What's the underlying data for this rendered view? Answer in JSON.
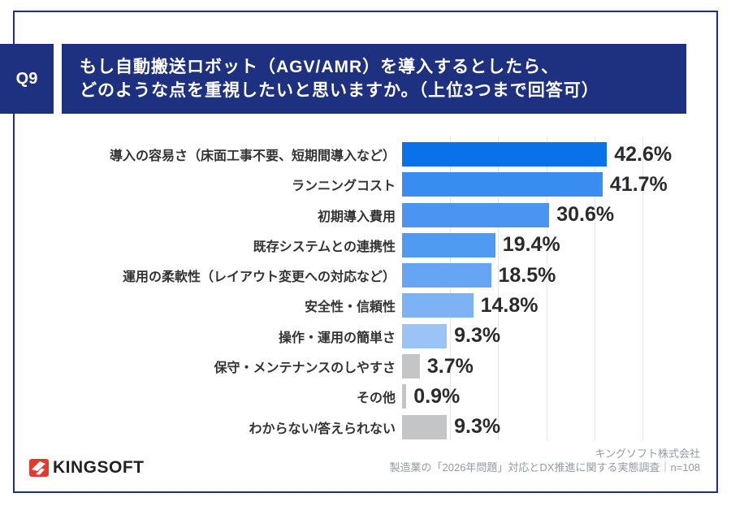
{
  "question": {
    "number": "Q9",
    "title_line1": "もし自動搬送ロボット（AGV/AMR）を導入するとしたら、",
    "title_line2": "どのような点を重視したいと思いますか。（上位3つまで回答可）"
  },
  "chart_data": {
    "type": "bar",
    "orientation": "horizontal",
    "unit": "%",
    "categories": [
      "導入の容易さ（床面工事不要、短期間導入など）",
      "ランニングコスト",
      "初期導入費用",
      "既存システムとの連携性",
      "運用の柔軟性（レイアウト変更への対応など）",
      "安全性・信頼性",
      "操作・運用の簡単さ",
      "保守・メンテナンスのしやすさ",
      "その他",
      "わからない/答えられない"
    ],
    "values": [
      42.6,
      41.7,
      30.6,
      19.4,
      18.5,
      14.8,
      9.3,
      3.7,
      0.9,
      9.3
    ],
    "value_labels": [
      "42.6%",
      "41.7%",
      "30.6%",
      "19.4%",
      "18.5%",
      "14.8%",
      "9.3%",
      "3.7%",
      "0.9%",
      "9.3%"
    ],
    "bar_colors": [
      "#0a72e8",
      "#3a8df0",
      "#4b95f1",
      "#4f9af3",
      "#66a5f3",
      "#7db3f4",
      "#9bc3f6",
      "#c4c5c6",
      "#c4c5c6",
      "#c4c5c6"
    ],
    "xlim": [
      0,
      60
    ],
    "gridline_interval": 10,
    "grid": true,
    "legend": "none"
  },
  "footer": {
    "logo_text": "KINGSOFT",
    "company": "キングソフト株式会社",
    "survey": "製造業の「2026年問題」対応とDX推進に関する実態調査｜n=108"
  },
  "colors": {
    "navy": "#1e3181",
    "logo_red": "#e23a2e",
    "grid": "#e3e5e8"
  }
}
